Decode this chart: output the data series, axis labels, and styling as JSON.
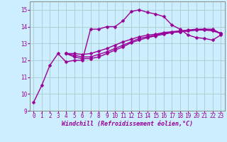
{
  "background_color": "#cceeff",
  "grid_color": "#aacccc",
  "line_color": "#990099",
  "marker": "D",
  "markersize": 2.5,
  "linewidth": 1.0,
  "xlim": [
    -0.5,
    23.5
  ],
  "ylim": [
    9,
    15.5
  ],
  "yticks": [
    9,
    10,
    11,
    12,
    13,
    14,
    15
  ],
  "xticks": [
    0,
    1,
    2,
    3,
    4,
    5,
    6,
    7,
    8,
    9,
    10,
    11,
    12,
    13,
    14,
    15,
    16,
    17,
    18,
    19,
    20,
    21,
    22,
    23
  ],
  "xlabel": "Windchill (Refroidissement éolien,°C)",
  "xlabel_fontsize": 6.0,
  "tick_fontsize": 5.5,
  "series": [
    [
      9.5,
      10.5,
      11.7,
      12.4,
      11.9,
      12.0,
      12.0,
      13.85,
      13.85,
      14.0,
      14.0,
      14.35,
      14.9,
      15.0,
      14.85,
      14.75,
      14.6,
      14.1,
      13.85,
      13.5,
      13.35,
      13.3,
      13.2,
      13.5
    ],
    [
      null,
      null,
      null,
      null,
      12.4,
      12.2,
      12.1,
      12.1,
      12.2,
      12.4,
      12.6,
      12.8,
      13.05,
      13.2,
      13.35,
      13.45,
      13.55,
      13.65,
      13.7,
      13.75,
      13.8,
      13.85,
      13.85,
      13.6
    ],
    [
      null,
      null,
      null,
      null,
      12.4,
      12.3,
      12.2,
      12.2,
      12.35,
      12.5,
      12.7,
      12.9,
      13.1,
      13.3,
      13.4,
      13.5,
      13.6,
      13.65,
      13.7,
      13.75,
      13.8,
      13.8,
      13.75,
      13.6
    ],
    [
      null,
      null,
      null,
      null,
      12.4,
      12.4,
      12.35,
      12.4,
      12.55,
      12.7,
      12.9,
      13.1,
      13.25,
      13.4,
      13.5,
      13.55,
      13.65,
      13.7,
      13.75,
      13.8,
      13.85,
      13.85,
      13.8,
      13.6
    ]
  ]
}
